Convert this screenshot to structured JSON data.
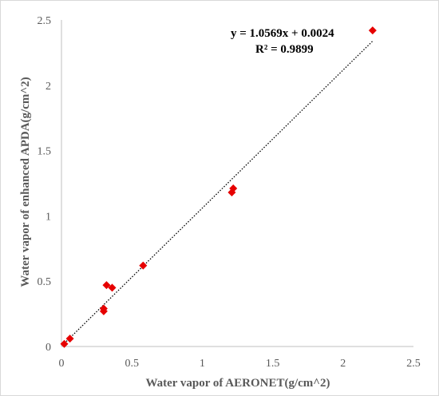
{
  "chart_data": {
    "type": "scatter",
    "title": "",
    "xlabel": "Water vapor of AERONET(g/cm^2)",
    "ylabel": "Water vapor of enhanced APDA(g/cm^2)",
    "xlim": [
      0,
      2.5
    ],
    "ylim": [
      0,
      2.5
    ],
    "xticks": [
      "0",
      "0.5",
      "1",
      "1.5",
      "2",
      "2.5"
    ],
    "yticks": [
      "0",
      "0.5",
      "1",
      "1.5",
      "2",
      "2.5"
    ],
    "grid": false,
    "series": [
      {
        "color": "#e60000",
        "marker": "diamond",
        "points": [
          {
            "x": 0.02,
            "y": 0.02
          },
          {
            "x": 0.06,
            "y": 0.06
          },
          {
            "x": 0.3,
            "y": 0.27
          },
          {
            "x": 0.3,
            "y": 0.29
          },
          {
            "x": 0.32,
            "y": 0.47
          },
          {
            "x": 0.36,
            "y": 0.45
          },
          {
            "x": 0.58,
            "y": 0.62
          },
          {
            "x": 1.21,
            "y": 1.18
          },
          {
            "x": 1.22,
            "y": 1.21
          },
          {
            "x": 2.21,
            "y": 2.42
          }
        ]
      }
    ],
    "trendline": {
      "slope": 1.0569,
      "intercept": 0.0024,
      "x_range": [
        0.02,
        2.21
      ],
      "style": "dotted",
      "color": "#000000",
      "equation": "y = 1.0569x + 0.0024",
      "r2": "R² = 0.9899"
    }
  }
}
